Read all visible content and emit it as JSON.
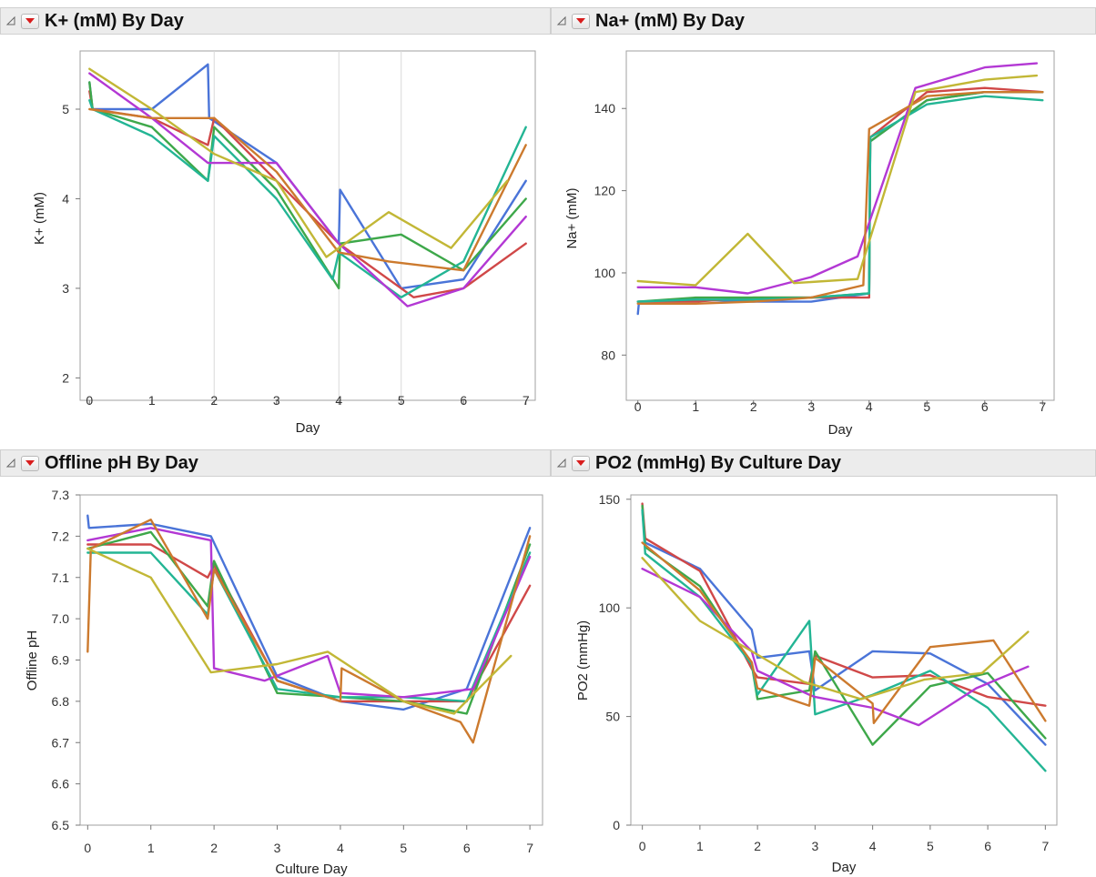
{
  "panels": [
    {
      "id": "k",
      "title": "K+ (mM) By Day"
    },
    {
      "id": "na",
      "title": "Na+ (mM) By Day"
    },
    {
      "id": "ph",
      "title": "Offline pH By Day"
    },
    {
      "id": "po2",
      "title": "PO2 (mmHg) By Culture Day"
    }
  ],
  "icons": {
    "disclosure": "disclosure-triangle-icon",
    "hotspot": "red-triangle-menu-icon"
  },
  "colors": {
    "red": "#d04848",
    "blue": "#4a74d8",
    "green": "#3ea84a",
    "teal": "#23b594",
    "magenta": "#b338d4",
    "orange": "#cc7a2e",
    "olive": "#c2b736"
  },
  "chart_data": [
    {
      "type": "line",
      "title": "K+ (mM) By Day",
      "xlabel": "Day",
      "ylabel": "K+ (mM)",
      "xlim": [
        -0.15,
        7.15
      ],
      "ylim": [
        1.75,
        5.65
      ],
      "grid_x": [
        2,
        4,
        5
      ],
      "xticks": [
        "0",
        "1",
        "2",
        "3",
        "4",
        "5",
        "6",
        "7"
      ],
      "yticks": [
        "2",
        "3",
        "4",
        "5"
      ],
      "series": [
        {
          "color": "blue",
          "x": [
            0,
            0.05,
            1,
            1.9,
            1.92,
            3,
            4,
            4.02,
            5,
            6,
            7
          ],
          "y": [
            5.3,
            5.0,
            5.0,
            5.5,
            4.9,
            4.4,
            3.5,
            4.1,
            3.0,
            3.1,
            4.2
          ]
        },
        {
          "color": "red",
          "x": [
            0,
            0.05,
            1,
            1.9,
            2,
            3,
            4,
            5.2,
            6,
            7
          ],
          "y": [
            5.2,
            5.0,
            4.9,
            4.6,
            4.9,
            4.2,
            3.5,
            2.9,
            3.0,
            3.5
          ]
        },
        {
          "color": "green",
          "x": [
            0,
            0.05,
            1,
            1.9,
            2,
            3,
            4,
            4.02,
            5,
            6,
            7
          ],
          "y": [
            5.3,
            5.0,
            4.8,
            4.2,
            4.8,
            4.1,
            3.0,
            3.5,
            3.6,
            3.2,
            4.0
          ]
        },
        {
          "color": "teal",
          "x": [
            0,
            0.05,
            1,
            1.9,
            2,
            3,
            3.9,
            4,
            5,
            6,
            7
          ],
          "y": [
            5.1,
            5.0,
            4.7,
            4.2,
            4.7,
            4.0,
            3.1,
            3.4,
            2.9,
            3.3,
            4.8
          ]
        },
        {
          "color": "magenta",
          "x": [
            0,
            1,
            1.9,
            2.8,
            3,
            4,
            5.1,
            6,
            7
          ],
          "y": [
            5.4,
            4.9,
            4.4,
            4.4,
            4.4,
            3.5,
            2.8,
            3.0,
            3.8
          ]
        },
        {
          "color": "orange",
          "x": [
            0,
            1,
            2,
            3,
            4,
            4.8,
            6,
            7
          ],
          "y": [
            5.0,
            4.9,
            4.9,
            4.3,
            3.4,
            3.3,
            3.2,
            4.6
          ]
        },
        {
          "color": "olive",
          "x": [
            0,
            1,
            2,
            3,
            3.8,
            4.8,
            5.8,
            6.7
          ],
          "y": [
            5.45,
            5.0,
            4.5,
            4.2,
            3.35,
            3.85,
            3.45,
            4.2
          ]
        }
      ]
    },
    {
      "type": "line",
      "title": "Na+ (mM) By Day",
      "xlabel": "Day",
      "ylabel": "Na+ (mM)",
      "xlim": [
        -0.2,
        7.2
      ],
      "ylim": [
        69,
        154
      ],
      "grid_x": [],
      "xticks": [
        "0",
        "1",
        "2",
        "3",
        "4",
        "5",
        "6",
        "7"
      ],
      "yticks": [
        "80",
        "100",
        "120",
        "140"
      ],
      "series": [
        {
          "color": "blue",
          "x": [
            0,
            0.02,
            1,
            2,
            3,
            4,
            4.02,
            5,
            6,
            7
          ],
          "y": [
            90,
            93,
            93.5,
            93,
            93,
            95,
            132,
            142,
            144,
            144
          ]
        },
        {
          "color": "red",
          "x": [
            0,
            1,
            2,
            3,
            4,
            4.02,
            5,
            6,
            7
          ],
          "y": [
            93,
            93,
            94,
            94,
            94,
            133,
            144,
            145,
            144
          ]
        },
        {
          "color": "green",
          "x": [
            0,
            1,
            2,
            3,
            4,
            4.02,
            5,
            6,
            7
          ],
          "y": [
            93,
            94,
            94,
            94,
            95,
            132,
            142,
            144,
            144
          ]
        },
        {
          "color": "teal",
          "x": [
            0,
            1,
            2,
            3,
            4,
            4.02,
            5,
            6,
            7
          ],
          "y": [
            93,
            93.5,
            93.5,
            94,
            95,
            133,
            141,
            143,
            142
          ]
        },
        {
          "color": "magenta",
          "x": [
            0,
            1,
            1.9,
            3,
            3.8,
            4.8,
            6,
            6.9
          ],
          "y": [
            96.5,
            96.5,
            95,
            99,
            104,
            145,
            150,
            151
          ]
        },
        {
          "color": "orange",
          "x": [
            0,
            1,
            2,
            3,
            3.9,
            4,
            5,
            6,
            7
          ],
          "y": [
            92.5,
            92.5,
            93,
            94,
            97,
            135,
            143,
            144,
            144
          ]
        },
        {
          "color": "olive",
          "x": [
            0,
            1,
            1.9,
            2.7,
            3.8,
            4.8,
            6,
            6.9
          ],
          "y": [
            98,
            97,
            109.5,
            97.5,
            98.5,
            144,
            147,
            148
          ]
        }
      ]
    },
    {
      "type": "line",
      "title": "Offline pH By Day",
      "xlabel": "Culture Day",
      "ylabel": "Offline pH",
      "xlim": [
        -0.12,
        7.2
      ],
      "ylim": [
        6.5,
        7.3
      ],
      "grid_x": [],
      "xticks": [
        "0",
        "1",
        "2",
        "3",
        "4",
        "5",
        "6",
        "7"
      ],
      "yticks": [
        "6.5",
        "6.6",
        "6.7",
        "6.8",
        "6.9",
        "7.0",
        "7.1",
        "7.2",
        "7.3"
      ],
      "series": [
        {
          "color": "blue",
          "x": [
            0,
            0.02,
            1,
            1.95,
            3,
            4,
            5,
            6,
            7
          ],
          "y": [
            7.25,
            7.22,
            7.23,
            7.2,
            6.86,
            6.8,
            6.78,
            6.83,
            7.22
          ]
        },
        {
          "color": "red",
          "x": [
            0,
            1,
            1.9,
            2,
            3,
            4,
            5,
            6,
            7
          ],
          "y": [
            7.18,
            7.18,
            7.1,
            7.13,
            6.85,
            6.8,
            6.8,
            6.8,
            7.08
          ]
        },
        {
          "color": "green",
          "x": [
            0,
            1,
            1.9,
            2,
            3,
            4,
            5,
            6,
            7
          ],
          "y": [
            7.17,
            7.21,
            7.03,
            7.14,
            6.82,
            6.81,
            6.8,
            6.77,
            7.18
          ]
        },
        {
          "color": "teal",
          "x": [
            0,
            1,
            1.9,
            2,
            3,
            4,
            5,
            6,
            7
          ],
          "y": [
            7.16,
            7.16,
            7.01,
            7.12,
            6.83,
            6.81,
            6.81,
            6.8,
            7.16
          ]
        },
        {
          "color": "magenta",
          "x": [
            0,
            1,
            1.95,
            2,
            2.8,
            3.8,
            4,
            5,
            6.1,
            7
          ],
          "y": [
            7.19,
            7.22,
            7.19,
            6.88,
            6.85,
            6.91,
            6.82,
            6.81,
            6.83,
            7.15
          ]
        },
        {
          "color": "orange",
          "x": [
            0,
            0.05,
            1,
            1.9,
            2,
            3,
            4,
            4.02,
            5,
            5.9,
            6.1,
            7
          ],
          "y": [
            6.92,
            7.17,
            7.24,
            7.0,
            7.12,
            6.85,
            6.8,
            6.88,
            6.8,
            6.75,
            6.7,
            7.2
          ]
        },
        {
          "color": "olive",
          "x": [
            0,
            1,
            1.95,
            3,
            3.8,
            5,
            5.8,
            6.7
          ],
          "y": [
            7.17,
            7.1,
            6.87,
            6.89,
            6.92,
            6.8,
            6.77,
            6.91
          ]
        }
      ]
    },
    {
      "type": "line",
      "title": "PO2 (mmHg) By Culture Day",
      "xlabel": "Day",
      "ylabel": "PO2 (mmHg)",
      "xlim": [
        -0.2,
        7.2
      ],
      "ylim": [
        0,
        152
      ],
      "grid_x": [],
      "xticks": [
        "0",
        "1",
        "2",
        "3",
        "4",
        "5",
        "6",
        "7"
      ],
      "yticks": [
        "0",
        "50",
        "100",
        "150"
      ],
      "series": [
        {
          "color": "blue",
          "x": [
            0,
            0.05,
            1,
            1.9,
            2,
            2.9,
            3,
            4,
            5,
            6,
            7
          ],
          "y": [
            145,
            130,
            118,
            90,
            77,
            80,
            62,
            80,
            79,
            65,
            37
          ]
        },
        {
          "color": "red",
          "x": [
            0,
            0.05,
            1,
            1.9,
            2,
            2.9,
            3,
            4,
            5,
            6,
            7
          ],
          "y": [
            148,
            132,
            117,
            72,
            68,
            65,
            78,
            68,
            69,
            59,
            55
          ]
        },
        {
          "color": "green",
          "x": [
            0,
            0.05,
            1,
            1.9,
            2,
            2.9,
            3,
            4,
            5,
            6,
            7
          ],
          "y": [
            147,
            128,
            110,
            74,
            58,
            62,
            80,
            37,
            64,
            70,
            40
          ]
        },
        {
          "color": "teal",
          "x": [
            0,
            0.05,
            1,
            1.9,
            2,
            2.9,
            3,
            4,
            5,
            6,
            7
          ],
          "y": [
            145,
            125,
            105,
            74,
            60,
            94,
            51,
            60,
            71,
            54,
            25
          ]
        },
        {
          "color": "magenta",
          "x": [
            0,
            1,
            1.9,
            2,
            2.9,
            3,
            4,
            4.8,
            5.8,
            6.7
          ],
          "y": [
            118,
            105,
            80,
            71,
            60,
            59,
            54,
            46,
            63,
            73
          ]
        },
        {
          "color": "orange",
          "x": [
            0,
            1,
            1.9,
            2,
            2.9,
            3,
            4,
            4.02,
            5,
            6.1,
            7
          ],
          "y": [
            130,
            108,
            75,
            63,
            55,
            77,
            56,
            47,
            82,
            85,
            48
          ]
        },
        {
          "color": "olive",
          "x": [
            0,
            1,
            1.9,
            2.8,
            3.8,
            4.9,
            5.9,
            6.7
          ],
          "y": [
            123,
            94,
            80,
            66,
            58,
            67,
            70,
            89
          ]
        }
      ]
    }
  ]
}
